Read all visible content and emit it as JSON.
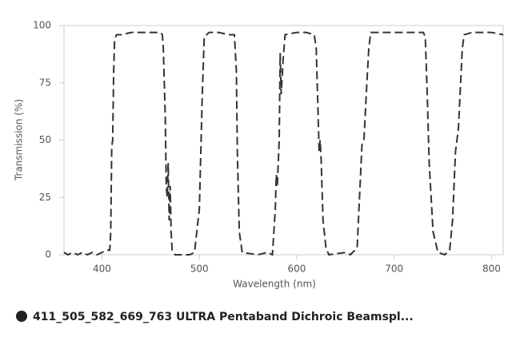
{
  "chart_data": {
    "type": "line",
    "x_label": "Wavelength (nm)",
    "y_label": "Transmission (%)",
    "xlim": [
      361,
      812
    ],
    "ylim": [
      0,
      100
    ],
    "xticks": [
      400,
      500,
      600,
      700,
      800
    ],
    "yticks": [
      0,
      25,
      50,
      75,
      100
    ],
    "grid": false,
    "legend": "bottom-left",
    "x": [
      361,
      365,
      370,
      375,
      380,
      385,
      390,
      395,
      400,
      405,
      408,
      409,
      410,
      411,
      412,
      413,
      415,
      420,
      430,
      440,
      450,
      460,
      462,
      463,
      465,
      466,
      467,
      468,
      469,
      470,
      471,
      472,
      475,
      490,
      495,
      500,
      503,
      505,
      510,
      520,
      530,
      536,
      538,
      539,
      541,
      544,
      560,
      570,
      575,
      578,
      579,
      580,
      582,
      583,
      584,
      586,
      588,
      600,
      610,
      618,
      620,
      622,
      623,
      624,
      625,
      627,
      630,
      633,
      650,
      655,
      662,
      665,
      667,
      669,
      672,
      674,
      676,
      690,
      700,
      710,
      720,
      730,
      732,
      734,
      736,
      740,
      745,
      752,
      757,
      760,
      763,
      766,
      770,
      772,
      780,
      790,
      800,
      812
    ],
    "series": [
      {
        "name": "411_505_582_669_763 ULTRA Pentaband Dichroic Beamspl...",
        "color": "#333333",
        "values": [
          1,
          0,
          1,
          0,
          1,
          0,
          1,
          0,
          1,
          2,
          2,
          10,
          47,
          50,
          80,
          94,
          96,
          96,
          97,
          97,
          97,
          97,
          96,
          90,
          60,
          30,
          25,
          40,
          15,
          30,
          10,
          2,
          0,
          0,
          1,
          20,
          70,
          95,
          97,
          97,
          96,
          96,
          80,
          45,
          10,
          1,
          0,
          1,
          0,
          20,
          35,
          30,
          50,
          88,
          70,
          85,
          96,
          97,
          97,
          96,
          90,
          60,
          45,
          50,
          42,
          15,
          3,
          0,
          1,
          0,
          3,
          30,
          48,
          50,
          75,
          90,
          97,
          97,
          97,
          97,
          97,
          97,
          95,
          70,
          40,
          10,
          1,
          0,
          2,
          15,
          45,
          55,
          90,
          96,
          97,
          97,
          97,
          96
        ]
      }
    ]
  }
}
